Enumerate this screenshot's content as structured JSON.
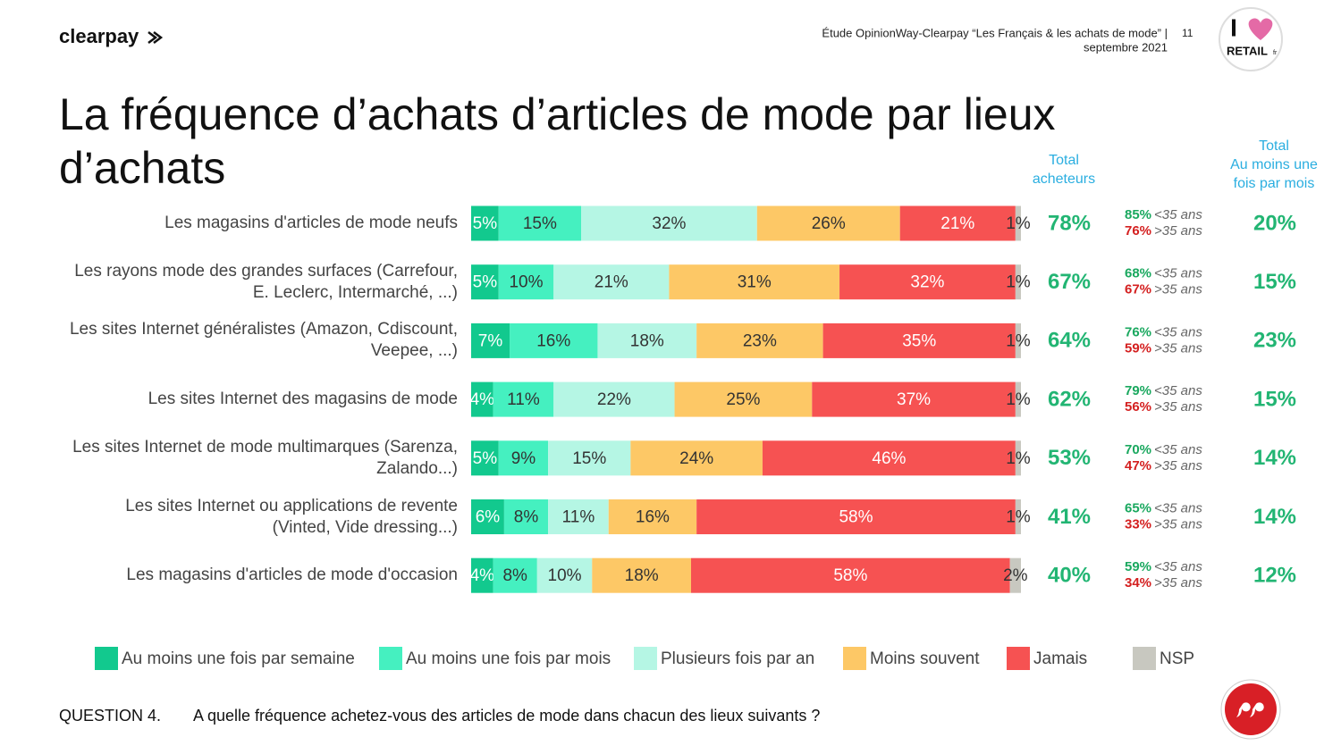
{
  "header": {
    "brand": "clearpay",
    "study": [
      "Étude OpinionWay-Clearpay “Les Français & les achats de mode” |",
      "septembre 2021"
    ],
    "page": "11",
    "partner_logo": [
      "I",
      "RETAIL",
      "fr"
    ]
  },
  "chart_data": {
    "type": "bar",
    "orientation": "horizontal",
    "stacked": true,
    "title": "La fréquence d’achats d’articles de mode par lieux d’achats",
    "categories": [
      "Les magasins d'articles de mode neufs",
      "Les rayons mode des grandes surfaces (Carrefour, E. Leclerc, Intermarché, ...)",
      "Les sites Internet généralistes (Amazon, Cdiscount, Veepee, ...)",
      "Les sites Internet des magasins de mode",
      "Les sites Internet de mode multimarques (Sarenza, Zalando...)",
      "Les sites Internet ou applications de revente (Vinted, Vide dressing...)",
      "Les magasins d'articles de mode d'occasion"
    ],
    "xlim": [
      0,
      100
    ],
    "legend": "bottom",
    "series": [
      {
        "name": "Au moins une fois par semaine",
        "color": "#12c98e",
        "values": [
          5,
          5,
          7,
          4,
          5,
          6,
          4
        ],
        "value_labels": [
          "5%",
          "5%",
          "7%",
          "4%",
          "5%",
          "6%",
          "4%"
        ]
      },
      {
        "name": "Au moins une fois par mois",
        "color": "#45f0c0",
        "values": [
          15,
          10,
          16,
          11,
          9,
          8,
          8
        ],
        "value_labels": [
          "15%",
          "10%",
          "16%",
          "11%",
          "9%",
          "8%",
          "8%"
        ]
      },
      {
        "name": "Plusieurs fois par an",
        "color": "#b5f6e4",
        "values": [
          32,
          21,
          18,
          22,
          15,
          11,
          10
        ],
        "value_labels": [
          "32%",
          "21%",
          "18%",
          "22%",
          "15%",
          "11%",
          "10%"
        ]
      },
      {
        "name": "Moins souvent",
        "color": "#fdc866",
        "values": [
          26,
          31,
          23,
          25,
          24,
          16,
          18
        ],
        "value_labels": [
          "26%",
          "31%",
          "23%",
          "25%",
          "24%",
          "16%",
          "18%"
        ]
      },
      {
        "name": "Jamais",
        "color": "#f65252",
        "values": [
          21,
          32,
          35,
          37,
          46,
          58,
          58
        ],
        "value_labels": [
          "21%",
          "32%",
          "35%",
          "37%",
          "46%",
          "58%",
          "58%"
        ]
      },
      {
        "name": "NSP",
        "color": "#c8c8c0",
        "values": [
          1,
          1,
          1,
          1,
          1,
          1,
          2
        ],
        "value_labels": [
          "1%",
          "1%",
          "1%",
          "1%",
          "1%",
          "1%",
          "2%"
        ]
      }
    ],
    "total_buyers": {
      "header": [
        "Total",
        "acheteurs"
      ],
      "values": [
        78,
        67,
        64,
        62,
        53,
        41,
        40
      ],
      "value_labels": [
        "78%",
        "67%",
        "64%",
        "62%",
        "53%",
        "41%",
        "40%"
      ]
    },
    "age_split": {
      "under_35": {
        "label": "<35 ans",
        "color": "#1aa85f",
        "values": [
          85,
          68,
          76,
          79,
          70,
          65,
          59
        ],
        "value_labels": [
          "85%",
          "68%",
          "76%",
          "79%",
          "70%",
          "65%",
          "59%"
        ]
      },
      "over_35": {
        "label": ">35 ans",
        "color": "#d42020",
        "values": [
          76,
          67,
          59,
          56,
          47,
          33,
          34
        ],
        "value_labels": [
          "76%",
          "67%",
          "59%",
          "56%",
          "47%",
          "33%",
          "34%"
        ]
      }
    },
    "monthly_total": {
      "header": [
        "Total",
        "Au moins une",
        "fois par mois"
      ],
      "values": [
        20,
        15,
        23,
        15,
        14,
        14,
        12
      ],
      "value_labels": [
        "20%",
        "15%",
        "23%",
        "15%",
        "14%",
        "14%",
        "12%"
      ]
    }
  },
  "footer": {
    "question_number": "QUESTION 4.",
    "question": "A quelle fréquence achetez-vous des articles de mode dans chacun des lieux suivants ?"
  }
}
